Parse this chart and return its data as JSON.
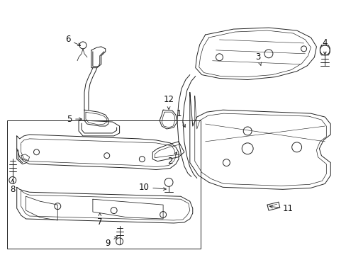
{
  "bg_color": "#ffffff",
  "line_color": "#222222",
  "figsize": [
    4.89,
    3.6
  ],
  "dpi": 100,
  "label_fontsize": 8.5
}
